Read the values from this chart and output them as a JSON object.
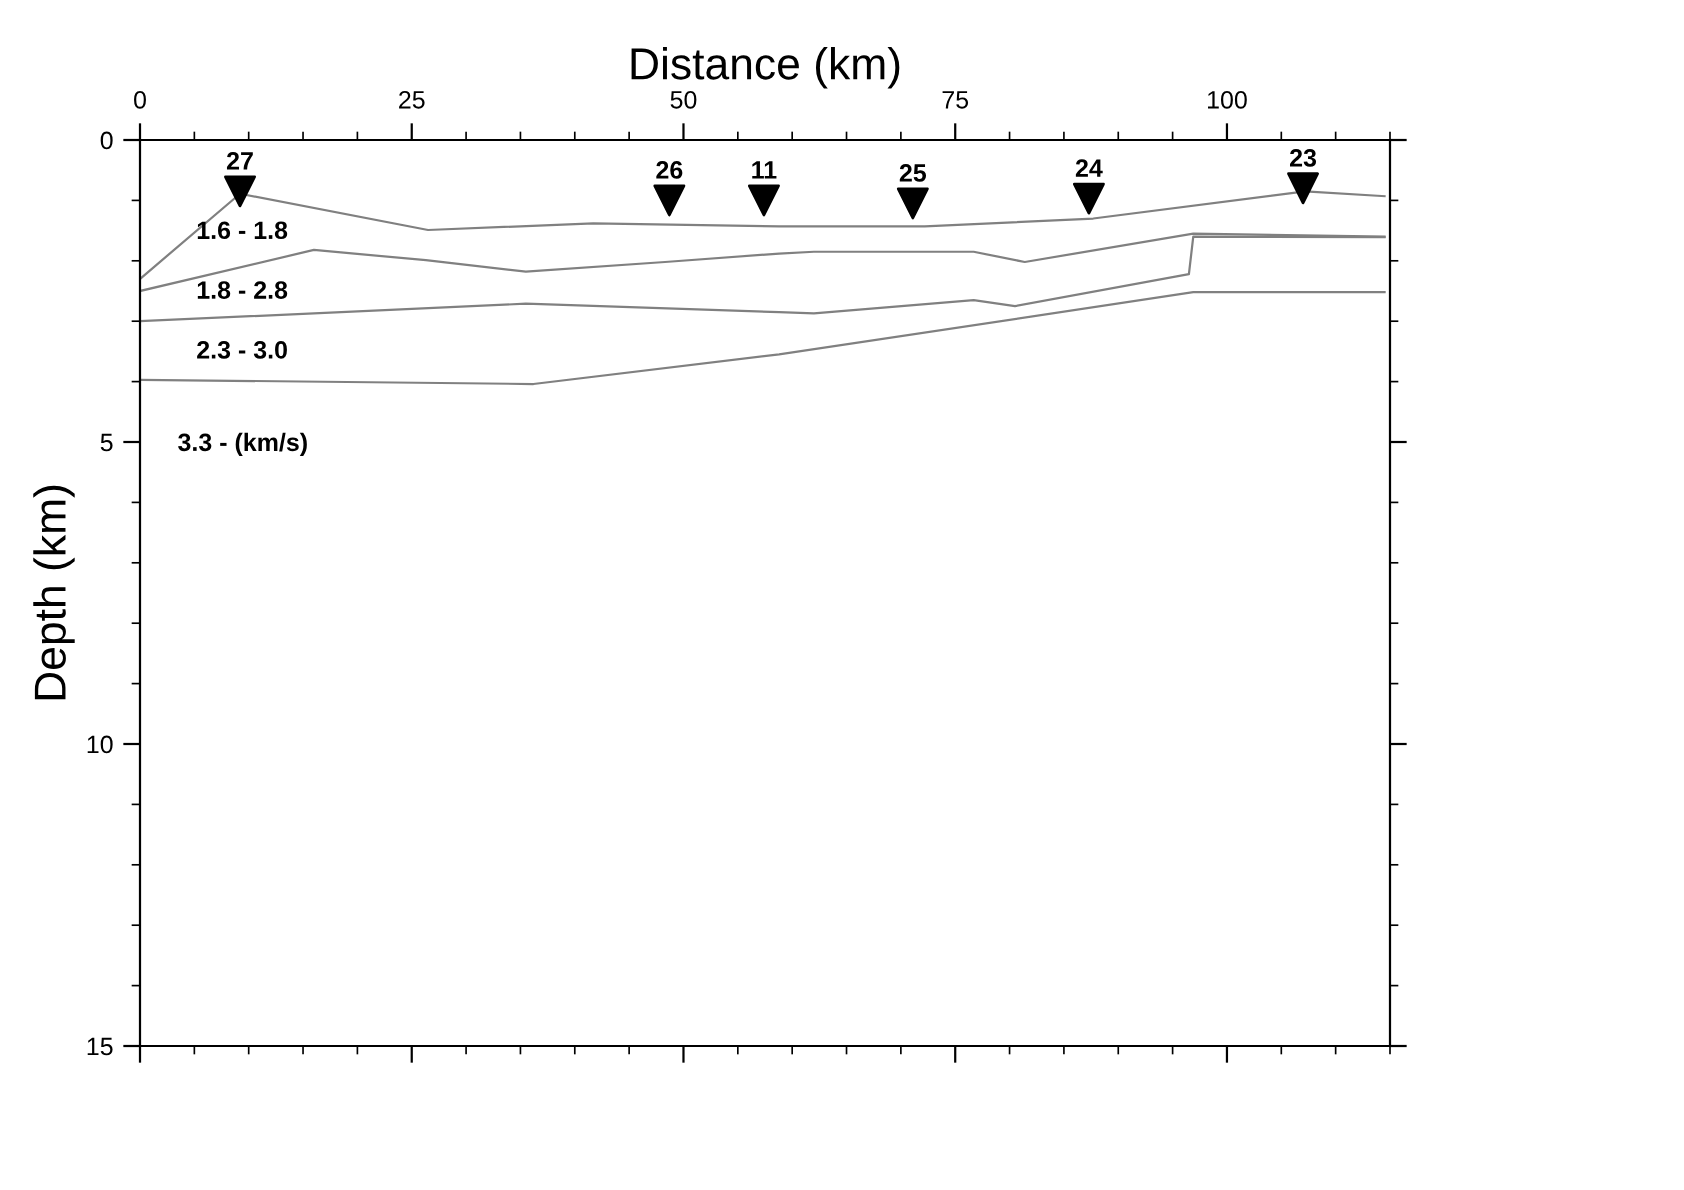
{
  "chart_data": {
    "type": "line",
    "xlabel": "Distance (km)",
    "ylabel": "Depth (km)",
    "xlim": [
      0,
      115
    ],
    "xticks": [
      0,
      25,
      50,
      75,
      100
    ],
    "ylim": [
      15,
      0
    ],
    "yticks": [
      0,
      5,
      10,
      15
    ],
    "grid": false,
    "legend": false,
    "series": [
      {
        "color": "#808080",
        "x": [
          0,
          9.2,
          26.5,
          41.7,
          58.8,
          72.2,
          87.7,
          107.2,
          114.5
        ],
        "values": [
          2.3,
          0.89,
          1.49,
          1.38,
          1.43,
          1.43,
          1.3,
          0.85,
          0.93
        ]
      },
      {
        "color": "#808080",
        "x": [
          0,
          16,
          26.3,
          35.5,
          48.3,
          58.8,
          62,
          76.7,
          81.4,
          96.9,
          114.5
        ],
        "values": [
          2.5,
          1.82,
          1.99,
          2.18,
          2.02,
          1.88,
          1.85,
          1.85,
          2.02,
          1.55,
          1.6
        ]
      },
      {
        "color": "#808080",
        "x": [
          0,
          35.5,
          58.8,
          62,
          76.7,
          80.5,
          96.5,
          96.9,
          114.5
        ],
        "values": [
          3.0,
          2.71,
          2.85,
          2.87,
          2.65,
          2.75,
          2.22,
          1.6,
          1.61
        ]
      },
      {
        "color": "#808080",
        "x": [
          0,
          36.2,
          58.8,
          96.9,
          114.5
        ],
        "values": [
          3.97,
          4.04,
          3.55,
          2.52,
          2.52
        ]
      },
      {
        "type": "scatter",
        "color": "#000000",
        "marker": "triangle",
        "x": [
          9.2,
          48.7,
          57.4,
          71.1,
          87.3,
          107
        ],
        "values": [
          0.85,
          1.0,
          1.0,
          1.05,
          0.97,
          0.8
        ]
      }
    ],
    "annotations": [
      {
        "text": "27",
        "x": 9.2,
        "y": 0.85
      },
      {
        "text": "26",
        "x": 48.7,
        "y": 1.0
      },
      {
        "text": "11",
        "x": 57.4,
        "y": 1.0
      },
      {
        "text": "25",
        "x": 71.1,
        "y": 1.05
      },
      {
        "text": "24",
        "x": 87.3,
        "y": 0.97
      },
      {
        "text": "23",
        "x": 107,
        "y": 0.8
      },
      "1.6 - 1.8",
      "1.8 - 2.8",
      "2.3 - 3.0",
      "3.3 - (km/s)"
    ]
  }
}
